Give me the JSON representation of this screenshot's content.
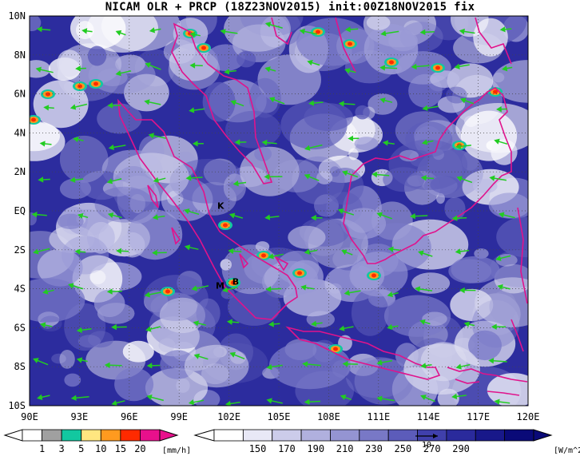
{
  "title": "NICAM OLR + PRCP (18Z23NOV2015) init:00Z18NOV2015 fix",
  "map": {
    "lat_range": [
      -10,
      10
    ],
    "lon_range": [
      90,
      120
    ],
    "lat_ticks": [
      "10N",
      "8N",
      "6N",
      "4N",
      "2N",
      "EQ",
      "2S",
      "4S",
      "6S",
      "8S",
      "10S"
    ],
    "lon_ticks": [
      "90E",
      "93E",
      "96E",
      "99E",
      "102E",
      "105E",
      "108E",
      "111E",
      "114E",
      "117E",
      "120E"
    ],
    "grid": "dotted",
    "coastline_color": "#e0138c",
    "wind_vector_color": "#22cc22",
    "place_labels": [
      {
        "text": "K",
        "lon": 101.3,
        "lat": 0.1
      },
      {
        "text": "B",
        "lon": 102.2,
        "lat": -3.8
      },
      {
        "text": "M",
        "lon": 101.2,
        "lat": -4.0
      }
    ]
  },
  "precip_colorbar": {
    "labels": [
      "1",
      "3",
      "5",
      "10",
      "15",
      "20"
    ],
    "colors": [
      "#ffffff",
      "#a0a0a0",
      "#12c8a0",
      "#ffe680",
      "#ff9a1f",
      "#ff2a00",
      "#e8108c"
    ],
    "unit": "[mm/h]"
  },
  "olr_colorbar": {
    "labels": [
      "150",
      "170",
      "190",
      "210",
      "230",
      "250",
      "270",
      "290"
    ],
    "colors": [
      "#ffffff",
      "#e8e8f6",
      "#ccccea",
      "#b0b0de",
      "#9494d2",
      "#7878c6",
      "#5c5cba",
      "#4040ac",
      "#2a2a9c",
      "#18188a",
      "#0a0a78"
    ],
    "unit": "[W/m^2]",
    "reference_vector_label": "10"
  }
}
